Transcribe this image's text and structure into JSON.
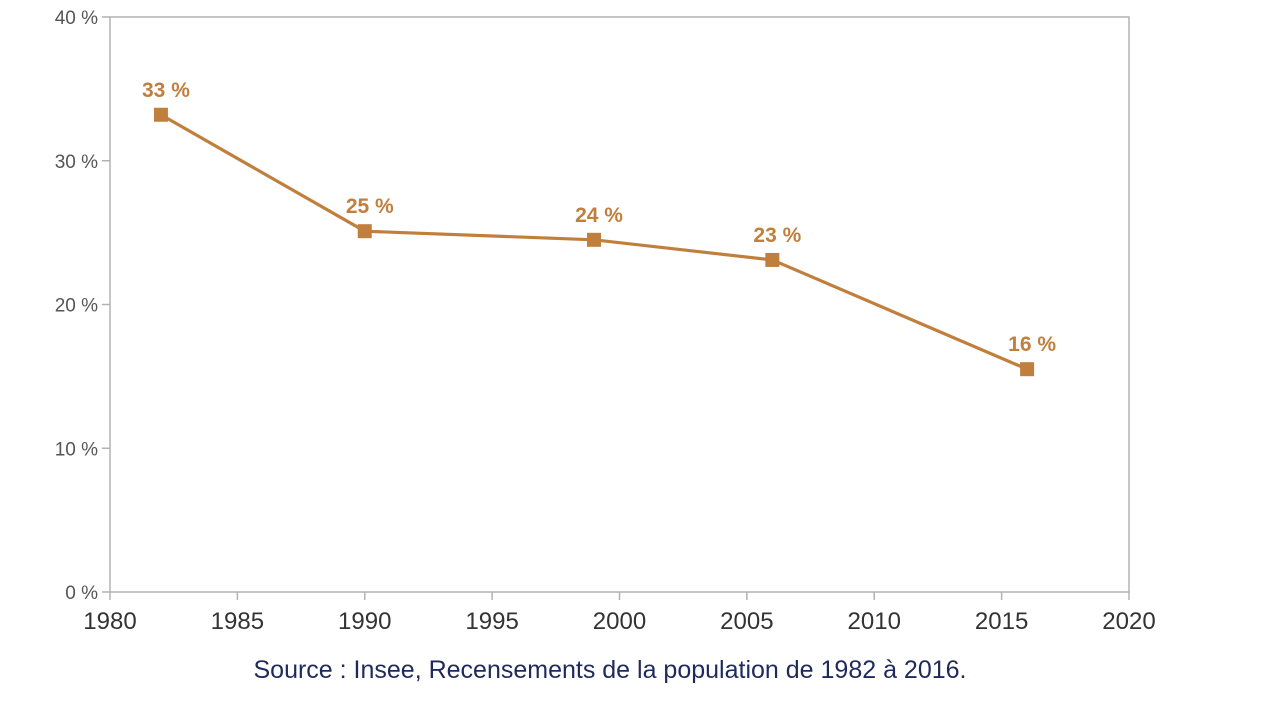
{
  "chart_data": {
    "type": "line",
    "title": "",
    "xlabel": "",
    "ylabel": "",
    "xlim": [
      1980,
      2020
    ],
    "ylim": [
      0,
      40
    ],
    "x_ticks": [
      1980,
      1985,
      1990,
      1995,
      2000,
      2005,
      2010,
      2015,
      2020
    ],
    "x_tick_labels": [
      "1980",
      "1985",
      "1990",
      "1995",
      "2000",
      "2005",
      "2010",
      "2015",
      "2020"
    ],
    "y_ticks": [
      0,
      10,
      20,
      30,
      40
    ],
    "y_tick_labels": [
      "0 %",
      "10 %",
      "20 %",
      "30 %",
      "40 %"
    ],
    "grid": false,
    "legend": "none",
    "series": [
      {
        "color": "#c17f3d",
        "marker": "square",
        "x": [
          1982,
          1990,
          1999,
          2006,
          2016
        ],
        "values": [
          33.2,
          25.1,
          24.5,
          23.1,
          15.5
        ],
        "labels": [
          "33 %",
          "25 %",
          "24 %",
          "23 %",
          "16 %"
        ]
      }
    ],
    "source": "Source : Insee, Recensements de la population de 1982 à 2016."
  }
}
